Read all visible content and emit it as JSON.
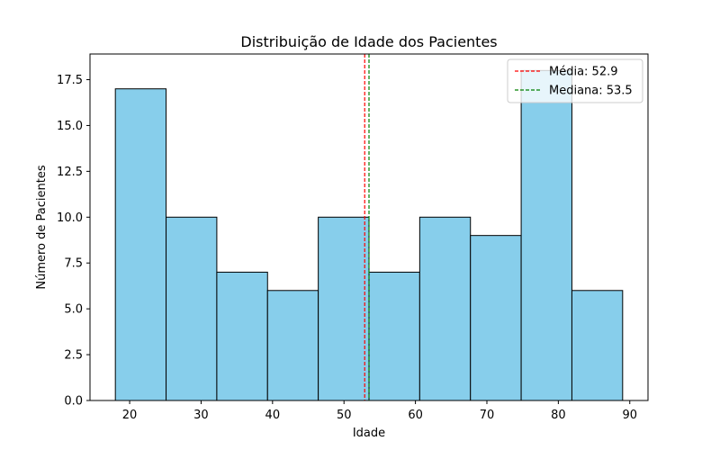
{
  "chart_data": {
    "type": "bar",
    "title": "Distribuição de Idade dos Pacientes",
    "xlabel": "Idade",
    "ylabel": "Número de Pacientes",
    "xlim": [
      14.45,
      92.55
    ],
    "ylim": [
      0,
      18.9
    ],
    "bin_edges": [
      18,
      25.1,
      32.2,
      39.3,
      46.4,
      53.5,
      60.6,
      67.7,
      74.8,
      81.9,
      89
    ],
    "values": [
      17,
      10,
      7,
      6,
      10,
      7,
      10,
      9,
      18,
      6
    ],
    "bar_color": "#87ceeb",
    "bar_edge_color": "#000000",
    "x_ticks": [
      20,
      30,
      40,
      50,
      60,
      70,
      80,
      90
    ],
    "y_ticks": [
      0,
      2.5,
      5,
      7.5,
      10,
      12.5,
      15,
      17.5
    ],
    "x_tick_labels": [
      "20",
      "30",
      "40",
      "50",
      "60",
      "70",
      "80",
      "90"
    ],
    "y_tick_labels": [
      "0.0",
      "2.5",
      "5.0",
      "7.5",
      "10.0",
      "12.5",
      "15.0",
      "17.5"
    ],
    "grid": false,
    "legend_position": "top-right",
    "reference_lines": [
      {
        "name": "Média: 52.9",
        "x": 52.9,
        "color": "#ff0000",
        "style": "dashed"
      },
      {
        "name": "Mediana: 53.5",
        "x": 53.5,
        "color": "#008000",
        "style": "dashed"
      }
    ]
  }
}
